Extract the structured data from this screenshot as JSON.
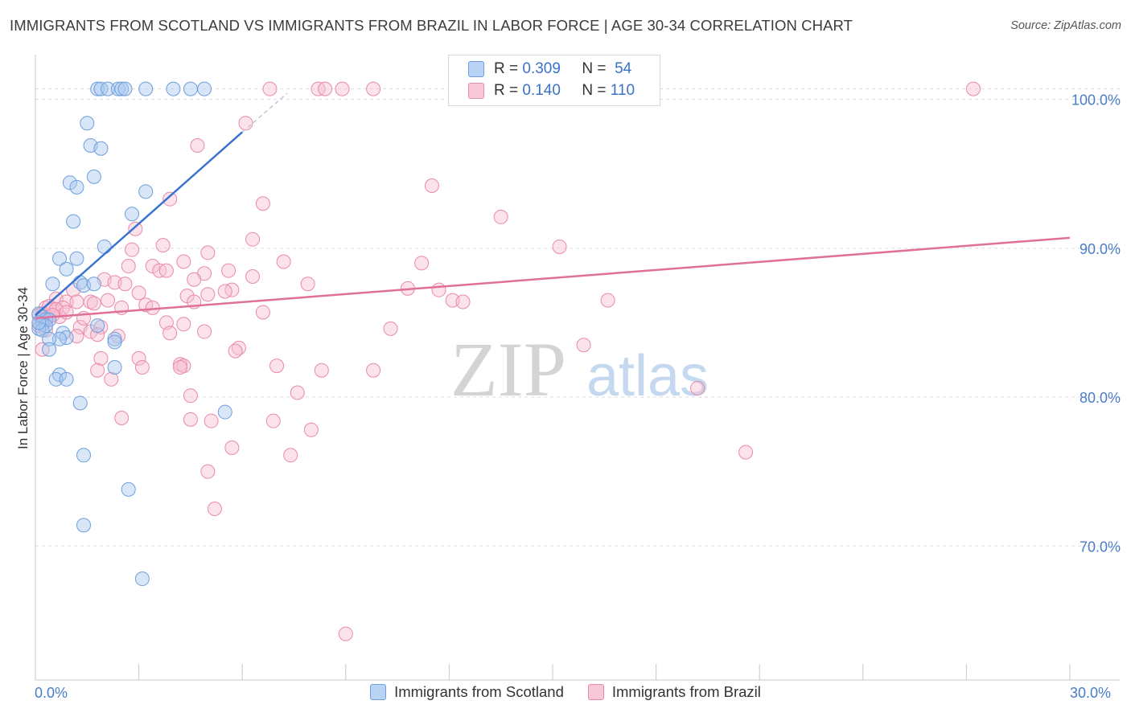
{
  "header": {
    "title": "IMMIGRANTS FROM SCOTLAND VS IMMIGRANTS FROM BRAZIL IN LABOR FORCE | AGE 30-34 CORRELATION CHART",
    "source": "Source: ZipAtlas.com"
  },
  "watermark": {
    "zip": "ZIP",
    "atlas": "atlas"
  },
  "legend": {
    "scotland": {
      "r_label": "R =",
      "r_value": "0.309",
      "n_label": "N =",
      "n_value": "54"
    },
    "brazil": {
      "r_label": "R =",
      "r_value": "0.140",
      "n_label": "N =",
      "n_value": "110"
    }
  },
  "colors": {
    "scotland_fill": "#a8c8f0",
    "scotland_stroke": "#6e9fdc",
    "scotland_line": "#3a72d0",
    "brazil_fill": "#f6bfd2",
    "brazil_stroke": "#e88aaa",
    "brazil_line": "#e0709a",
    "axis_text": "#4a7cc8",
    "grid": "#dddddd"
  },
  "chart_data": {
    "type": "scatter",
    "title": "IMMIGRANTS FROM SCOTLAND VS IMMIGRANTS FROM BRAZIL IN LABOR FORCE | AGE 30-34 CORRELATION CHART",
    "xlabel": "",
    "ylabel": "In Labor Force | Age 30-34",
    "xlim": [
      0,
      30
    ],
    "ylim": [
      61.0,
      103.0
    ],
    "x_tick_labels": [
      "0.0%",
      "30.0%"
    ],
    "y_ticks": [
      70,
      80,
      90,
      100
    ],
    "y_tick_labels": [
      "70.0%",
      "80.0%",
      "90.0%",
      "100.0%"
    ],
    "grid": true,
    "legend_position": "top-center",
    "series": [
      {
        "name": "Immigrants from Scotland",
        "r": 0.309,
        "n": 54,
        "trend": {
          "x0": 0.0,
          "y0": 85.5,
          "x1": 6.0,
          "y1": 97.8
        },
        "trend_dashed": {
          "x0": 6.0,
          "y0": 97.8,
          "x1": 7.3,
          "y1": 100.4
        },
        "points": [
          [
            1.8,
            100.7
          ],
          [
            1.9,
            100.7
          ],
          [
            2.1,
            100.7
          ],
          [
            2.4,
            100.7
          ],
          [
            2.5,
            100.7
          ],
          [
            2.6,
            100.7
          ],
          [
            3.2,
            100.7
          ],
          [
            4.0,
            100.7
          ],
          [
            4.5,
            100.7
          ],
          [
            4.9,
            100.7
          ],
          [
            1.5,
            98.4
          ],
          [
            1.6,
            96.9
          ],
          [
            1.9,
            96.7
          ],
          [
            1.7,
            94.8
          ],
          [
            1.0,
            94.4
          ],
          [
            1.2,
            94.1
          ],
          [
            3.2,
            93.8
          ],
          [
            2.8,
            92.3
          ],
          [
            1.1,
            91.8
          ],
          [
            2.0,
            90.1
          ],
          [
            0.7,
            89.3
          ],
          [
            1.2,
            89.3
          ],
          [
            0.9,
            88.6
          ],
          [
            0.5,
            87.6
          ],
          [
            1.3,
            87.7
          ],
          [
            1.4,
            87.5
          ],
          [
            1.7,
            87.6
          ],
          [
            0.1,
            85.6
          ],
          [
            0.2,
            85.4
          ],
          [
            0.3,
            85.2
          ],
          [
            0.4,
            85.2
          ],
          [
            0.2,
            84.9
          ],
          [
            0.3,
            84.8
          ],
          [
            0.1,
            84.6
          ],
          [
            0.2,
            84.5
          ],
          [
            0.8,
            84.3
          ],
          [
            0.9,
            84.0
          ],
          [
            0.7,
            83.9
          ],
          [
            0.4,
            83.9
          ],
          [
            2.3,
            83.9
          ],
          [
            2.3,
            83.7
          ],
          [
            1.8,
            84.8
          ],
          [
            0.4,
            83.2
          ],
          [
            2.3,
            82.0
          ],
          [
            0.7,
            81.5
          ],
          [
            0.6,
            81.2
          ],
          [
            0.9,
            81.2
          ],
          [
            1.3,
            79.6
          ],
          [
            5.5,
            79.0
          ],
          [
            1.4,
            76.1
          ],
          [
            2.7,
            73.8
          ],
          [
            1.4,
            71.4
          ],
          [
            3.1,
            67.8
          ],
          [
            0.1,
            85.0
          ]
        ]
      },
      {
        "name": "Immigrants from Brazil",
        "r": 0.14,
        "n": 110,
        "trend": {
          "x0": 0.0,
          "y0": 85.3,
          "x1": 30.0,
          "y1": 90.7
        },
        "points": [
          [
            6.8,
            100.7
          ],
          [
            8.2,
            100.7
          ],
          [
            8.4,
            100.7
          ],
          [
            8.9,
            100.7
          ],
          [
            9.8,
            100.7
          ],
          [
            27.2,
            100.7
          ],
          [
            6.1,
            98.4
          ],
          [
            4.7,
            96.9
          ],
          [
            11.5,
            94.2
          ],
          [
            3.9,
            93.3
          ],
          [
            6.6,
            93.0
          ],
          [
            13.5,
            92.1
          ],
          [
            2.9,
            91.3
          ],
          [
            6.3,
            90.6
          ],
          [
            3.7,
            90.2
          ],
          [
            15.2,
            90.1
          ],
          [
            2.8,
            89.9
          ],
          [
            5.0,
            89.7
          ],
          [
            7.2,
            89.1
          ],
          [
            11.2,
            89.0
          ],
          [
            3.4,
            88.8
          ],
          [
            2.7,
            88.8
          ],
          [
            4.3,
            89.1
          ],
          [
            3.6,
            88.5
          ],
          [
            3.8,
            88.5
          ],
          [
            5.6,
            88.5
          ],
          [
            4.9,
            88.3
          ],
          [
            6.3,
            88.1
          ],
          [
            2.0,
            87.9
          ],
          [
            4.6,
            87.9
          ],
          [
            2.3,
            87.7
          ],
          [
            2.6,
            87.6
          ],
          [
            7.9,
            87.6
          ],
          [
            10.8,
            87.3
          ],
          [
            5.7,
            87.2
          ],
          [
            5.5,
            87.1
          ],
          [
            3.0,
            87.0
          ],
          [
            11.7,
            87.2
          ],
          [
            1.1,
            87.2
          ],
          [
            4.4,
            86.8
          ],
          [
            5.0,
            86.9
          ],
          [
            0.6,
            86.6
          ],
          [
            0.9,
            86.4
          ],
          [
            1.2,
            86.4
          ],
          [
            1.6,
            86.4
          ],
          [
            1.7,
            86.3
          ],
          [
            2.1,
            86.5
          ],
          [
            3.2,
            86.2
          ],
          [
            4.6,
            86.4
          ],
          [
            12.1,
            86.5
          ],
          [
            12.4,
            86.4
          ],
          [
            16.6,
            86.5
          ],
          [
            0.3,
            86.0
          ],
          [
            0.5,
            85.9
          ],
          [
            0.8,
            86.0
          ],
          [
            2.5,
            86.0
          ],
          [
            3.4,
            86.0
          ],
          [
            0.2,
            85.6
          ],
          [
            0.4,
            85.4
          ],
          [
            0.7,
            85.4
          ],
          [
            6.6,
            85.7
          ],
          [
            3.8,
            85.0
          ],
          [
            4.3,
            84.9
          ],
          [
            1.3,
            84.7
          ],
          [
            1.9,
            84.7
          ],
          [
            1.6,
            84.4
          ],
          [
            10.3,
            84.6
          ],
          [
            4.9,
            84.4
          ],
          [
            3.9,
            84.3
          ],
          [
            1.8,
            84.2
          ],
          [
            2.4,
            84.1
          ],
          [
            1.2,
            84.1
          ],
          [
            15.9,
            83.5
          ],
          [
            5.9,
            83.3
          ],
          [
            5.8,
            83.1
          ],
          [
            3.0,
            82.6
          ],
          [
            1.9,
            82.6
          ],
          [
            4.2,
            82.2
          ],
          [
            4.3,
            82.1
          ],
          [
            4.2,
            82.0
          ],
          [
            7.0,
            82.1
          ],
          [
            3.1,
            82.0
          ],
          [
            1.8,
            81.8
          ],
          [
            8.3,
            81.8
          ],
          [
            9.8,
            81.8
          ],
          [
            2.2,
            81.2
          ],
          [
            19.2,
            80.6
          ],
          [
            7.6,
            80.3
          ],
          [
            4.5,
            80.1
          ],
          [
            2.5,
            78.6
          ],
          [
            4.5,
            78.5
          ],
          [
            5.1,
            78.4
          ],
          [
            6.9,
            78.4
          ],
          [
            8.0,
            77.8
          ],
          [
            5.7,
            76.6
          ],
          [
            20.6,
            76.3
          ],
          [
            7.4,
            76.1
          ],
          [
            5.0,
            75.0
          ],
          [
            5.2,
            72.5
          ],
          [
            9.0,
            64.1
          ],
          [
            0.1,
            85.5
          ],
          [
            0.2,
            85.2
          ],
          [
            0.1,
            84.8
          ],
          [
            0.3,
            84.5
          ],
          [
            0.4,
            86.1
          ],
          [
            0.6,
            85.9
          ],
          [
            0.9,
            85.7
          ],
          [
            0.2,
            83.2
          ],
          [
            1.4,
            85.3
          ],
          [
            0.5,
            85.5
          ]
        ]
      }
    ]
  },
  "bottom_legend": {
    "scotland": "Immigrants from Scotland",
    "brazil": "Immigrants from Brazil"
  }
}
